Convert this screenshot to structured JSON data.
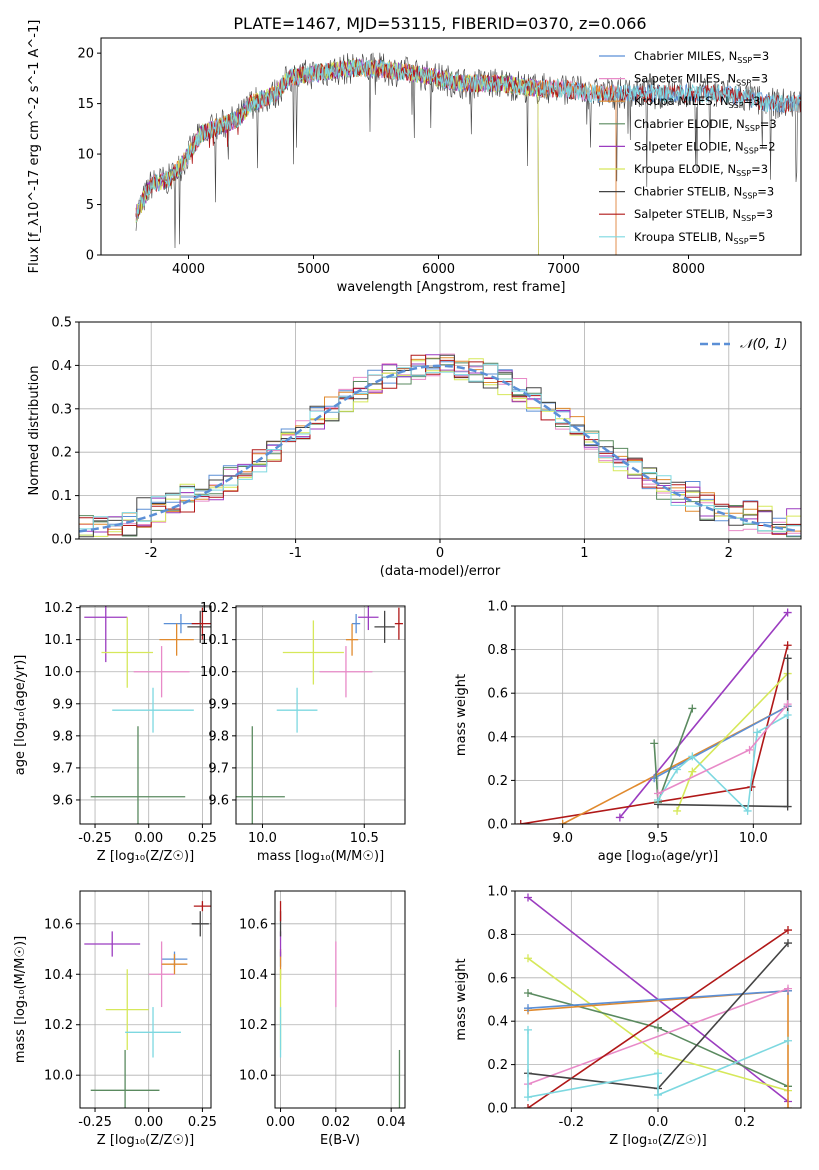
{
  "title": "PLATE=1467, MJD=53115, FIBERID=0370, z=0.066",
  "colors": {
    "Chabrier MILES": "#5b8fd6",
    "Salpeter MILES": "#e88ac8",
    "Kroupa MILES": "#e08a2e",
    "Chabrier ELODIE": "#5a8a5f",
    "Salpeter ELODIE": "#9b3cc0",
    "Kroupa ELODIE": "#d6e85a",
    "Chabrier STELIB": "#444444",
    "Salpeter STELIB": "#b01818",
    "Kroupa STELIB": "#7dd8e0"
  },
  "chart_data": [
    {
      "type": "line",
      "name": "spectrum",
      "xlabel": "wavelength [Angstrom, rest frame]",
      "ylabel": "Flux [f_λ10^-17 erg cm^-2 s^-1 A^-1]",
      "xlim": [
        3300,
        8900
      ],
      "ylim": [
        0,
        21.5
      ],
      "xticks": [
        4000,
        5000,
        6000,
        7000,
        8000
      ],
      "yticks": [
        0,
        5,
        10,
        15,
        20
      ],
      "grid": false,
      "legend_position": "top-right",
      "series": [
        {
          "name": "Chabrier MILES",
          "label": "Chabrier MILES, N",
          "sub": "SSP",
          "n": "=3",
          "xmax": 8950
        },
        {
          "name": "Salpeter MILES",
          "label": "Salpeter MILES, N",
          "sub": "SSP",
          "n": "=3",
          "xmax": 7420
        },
        {
          "name": "Kroupa MILES",
          "label": "Kroupa MILES, N",
          "sub": "SSP",
          "n": "=3",
          "xmax": 7420
        },
        {
          "name": "Chabrier ELODIE",
          "label": "Chabrier ELODIE, N",
          "sub": "SSP",
          "n": "=3",
          "xmax": 6800
        },
        {
          "name": "Salpeter ELODIE",
          "label": "Salpeter ELODIE, N",
          "sub": "SSP",
          "n": "=2",
          "xmax": 6800
        },
        {
          "name": "Kroupa ELODIE",
          "label": "Kroupa ELODIE, N",
          "sub": "SSP",
          "n": "=3",
          "xmax": 6800
        },
        {
          "name": "Chabrier STELIB",
          "label": "Chabrier STELIB, N",
          "sub": "SSP",
          "n": "=3",
          "xmax": 8950
        },
        {
          "name": "Salpeter STELIB",
          "label": "Salpeter STELIB, N",
          "sub": "SSP",
          "n": "=3",
          "xmax": 8950
        },
        {
          "name": "Kroupa STELIB",
          "label": "Kroupa STELIB, N",
          "sub": "SSP",
          "n": "=5",
          "xmax": 8950
        }
      ],
      "continuum": [
        [
          3580,
          4
        ],
        [
          3700,
          7
        ],
        [
          3850,
          7.5
        ],
        [
          3950,
          9
        ],
        [
          4000,
          10
        ],
        [
          4100,
          12
        ],
        [
          4200,
          12.5
        ],
        [
          4300,
          13
        ],
        [
          4400,
          13.5
        ],
        [
          4500,
          15
        ],
        [
          4700,
          16
        ],
        [
          4800,
          17.5
        ],
        [
          5000,
          18
        ],
        [
          5300,
          18.5
        ],
        [
          5500,
          18.5
        ],
        [
          5800,
          18
        ],
        [
          6000,
          17.5
        ],
        [
          6200,
          17
        ],
        [
          6500,
          17
        ],
        [
          6800,
          16.5
        ],
        [
          7000,
          16.5
        ],
        [
          7200,
          16
        ],
        [
          7500,
          16
        ],
        [
          7800,
          16
        ],
        [
          8000,
          16
        ],
        [
          8300,
          16
        ],
        [
          8500,
          15.5
        ],
        [
          8650,
          15
        ]
      ]
    },
    {
      "type": "histogram",
      "name": "residuals",
      "xlabel": "(data-model)/error",
      "ylabel": "Normed distribution",
      "xlim": [
        -2.5,
        2.5
      ],
      "ylim": [
        0,
        0.5
      ],
      "xticks": [
        -2,
        -1,
        0,
        1,
        2
      ],
      "yticks": [
        0.0,
        0.1,
        0.2,
        0.3,
        0.4,
        0.5
      ],
      "grid": true,
      "bin_width": 0.1,
      "reference_curve": {
        "label": "𝒩(0, 1)",
        "mean": 0,
        "sigma": 1,
        "color": "#5b8fd6"
      },
      "legend_position": "top-right"
    },
    {
      "type": "scatter",
      "name": "age-vs-Z",
      "xlabel": "Z [log₁₀(Z/Z☉)]",
      "ylabel": "age  [log₁₀(age/yr)]",
      "xlim": [
        -0.32,
        0.29
      ],
      "ylim": [
        9.525,
        10.205
      ],
      "xticks": [
        -0.25,
        0.0,
        0.25
      ],
      "yticks": [
        9.6,
        9.7,
        9.8,
        9.9,
        10.0,
        10.1,
        10.2
      ],
      "grid": true,
      "points": [
        {
          "name": "Chabrier MILES",
          "x": 0.15,
          "y": 10.15,
          "xerr": 0.08,
          "yerr": 0.03
        },
        {
          "name": "Salpeter MILES",
          "x": 0.06,
          "y": 10.0,
          "xerr": 0.13,
          "yerr": 0.08
        },
        {
          "name": "Kroupa MILES",
          "x": 0.13,
          "y": 10.1,
          "xerr": 0.08,
          "yerr": 0.05
        },
        {
          "name": "Chabrier ELODIE",
          "x": -0.05,
          "y": 9.61,
          "xerr": 0.22,
          "yerr": 0.22
        },
        {
          "name": "Salpeter ELODIE",
          "x": -0.2,
          "y": 10.17,
          "xerr": 0.1,
          "yerr": 0.14
        },
        {
          "name": "Kroupa ELODIE",
          "x": -0.1,
          "y": 10.06,
          "xerr": 0.12,
          "yerr": 0.11
        },
        {
          "name": "Chabrier STELIB",
          "x": 0.24,
          "y": 10.14,
          "xerr": 0.06,
          "yerr": 0.05
        },
        {
          "name": "Salpeter STELIB",
          "x": 0.25,
          "y": 10.15,
          "xerr": 0.05,
          "yerr": 0.05
        },
        {
          "name": "Kroupa STELIB",
          "x": 0.02,
          "y": 9.88,
          "xerr": 0.19,
          "yerr": 0.07
        }
      ]
    },
    {
      "type": "scatter",
      "name": "age-vs-mass",
      "xlabel": "mass [log₁₀(M/M☉)]",
      "ylabel": "",
      "xlim": [
        9.87,
        10.7
      ],
      "ylim": [
        9.525,
        10.205
      ],
      "xticks": [
        10.0,
        10.5
      ],
      "yticks": [
        9.6,
        9.7,
        9.8,
        9.9,
        10.0,
        10.1,
        10.2
      ],
      "grid": true,
      "points": [
        {
          "name": "Chabrier MILES",
          "x": 10.46,
          "y": 10.15,
          "xerr": 0.02,
          "yerr": 0.03
        },
        {
          "name": "Salpeter MILES",
          "x": 10.41,
          "y": 10.0,
          "xerr": 0.13,
          "yerr": 0.08
        },
        {
          "name": "Kroupa MILES",
          "x": 10.44,
          "y": 10.1,
          "xerr": 0.03,
          "yerr": 0.05
        },
        {
          "name": "Chabrier ELODIE",
          "x": 9.95,
          "y": 9.61,
          "xerr": 0.16,
          "yerr": 0.22
        },
        {
          "name": "Salpeter ELODIE",
          "x": 10.52,
          "y": 10.17,
          "xerr": 0.05,
          "yerr": 0.04
        },
        {
          "name": "Kroupa ELODIE",
          "x": 10.25,
          "y": 10.06,
          "xerr": 0.15,
          "yerr": 0.1
        },
        {
          "name": "Chabrier STELIB",
          "x": 10.6,
          "y": 10.14,
          "xerr": 0.05,
          "yerr": 0.05
        },
        {
          "name": "Salpeter STELIB",
          "x": 10.67,
          "y": 10.15,
          "xerr": 0.02,
          "yerr": 0.05
        },
        {
          "name": "Kroupa STELIB",
          "x": 10.17,
          "y": 9.88,
          "xerr": 0.1,
          "yerr": 0.07
        }
      ]
    },
    {
      "type": "line",
      "name": "massweight-vs-age",
      "xlabel": "age  [log₁₀(age/yr)]",
      "ylabel": "mass weight",
      "xlim": [
        8.75,
        10.25
      ],
      "ylim": [
        0,
        1.0
      ],
      "xticks": [
        9.0,
        9.5,
        10.0
      ],
      "yticks": [
        0.0,
        0.2,
        0.4,
        0.6,
        0.8,
        1.0
      ],
      "grid": true,
      "series": [
        {
          "name": "Salpeter ELODIE",
          "points": [
            [
              9.3,
              0.03
            ],
            [
              10.18,
              0.97
            ]
          ]
        },
        {
          "name": "Salpeter STELIB",
          "points": [
            [
              8.78,
              0.0
            ],
            [
              9.99,
              0.17
            ],
            [
              10.18,
              0.82
            ]
          ]
        },
        {
          "name": "Kroupa MILES",
          "points": [
            [
              9.0,
              0.0
            ],
            [
              10.18,
              0.54
            ]
          ]
        },
        {
          "name": "Chabrier MILES",
          "points": [
            [
              9.48,
              0.21
            ],
            [
              10.18,
              0.54
            ]
          ]
        },
        {
          "name": "Chabrier ELODIE",
          "points": [
            [
              9.48,
              0.37
            ],
            [
              9.5,
              0.1
            ],
            [
              9.68,
              0.53
            ]
          ]
        },
        {
          "name": "Kroupa ELODIE",
          "points": [
            [
              9.6,
              0.06
            ],
            [
              9.68,
              0.24
            ],
            [
              10.18,
              0.69
            ]
          ]
        },
        {
          "name": "Chabrier STELIB",
          "points": [
            [
              9.5,
              0.09
            ],
            [
              10.18,
              0.08
            ],
            [
              10.18,
              0.76
            ]
          ]
        },
        {
          "name": "Kroupa STELIB",
          "points": [
            [
              9.5,
              0.11
            ],
            [
              9.6,
              0.25
            ],
            [
              9.68,
              0.31
            ],
            [
              9.97,
              0.06
            ],
            [
              10.02,
              0.42
            ],
            [
              10.18,
              0.5
            ]
          ]
        },
        {
          "name": "Salpeter MILES",
          "points": [
            [
              9.5,
              0.14
            ],
            [
              9.98,
              0.34
            ],
            [
              10.18,
              0.55
            ]
          ]
        }
      ]
    },
    {
      "type": "scatter",
      "name": "mass-vs-Z",
      "xlabel": "Z [log₁₀(Z/Z☉)]",
      "ylabel": "mass [log₁₀(M/M☉)]",
      "xlim": [
        -0.32,
        0.29
      ],
      "ylim": [
        9.87,
        10.73
      ],
      "xticks": [
        -0.25,
        0.0,
        0.25
      ],
      "yticks": [
        10.0,
        10.2,
        10.4,
        10.6
      ],
      "grid": true,
      "points": [
        {
          "name": "Chabrier MILES",
          "x": 0.12,
          "y": 10.46,
          "xerr": 0.06,
          "yerr": 0.03
        },
        {
          "name": "Salpeter MILES",
          "x": 0.06,
          "y": 10.4,
          "xerr": 0.06,
          "yerr": 0.13
        },
        {
          "name": "Kroupa MILES",
          "x": 0.12,
          "y": 10.44,
          "xerr": 0.06,
          "yerr": 0.04
        },
        {
          "name": "Chabrier ELODIE",
          "x": -0.11,
          "y": 9.94,
          "xerr": 0.16,
          "yerr": 0.16
        },
        {
          "name": "Salpeter ELODIE",
          "x": -0.17,
          "y": 10.52,
          "xerr": 0.13,
          "yerr": 0.05
        },
        {
          "name": "Kroupa ELODIE",
          "x": -0.1,
          "y": 10.26,
          "xerr": 0.1,
          "yerr": 0.16
        },
        {
          "name": "Chabrier STELIB",
          "x": 0.24,
          "y": 10.6,
          "xerr": 0.04,
          "yerr": 0.05
        },
        {
          "name": "Salpeter STELIB",
          "x": 0.25,
          "y": 10.67,
          "xerr": 0.04,
          "yerr": 0.02
        },
        {
          "name": "Kroupa STELIB",
          "x": 0.02,
          "y": 10.17,
          "xerr": 0.13,
          "yerr": 0.1
        }
      ]
    },
    {
      "type": "scatter",
      "name": "mass-vs-EBV",
      "xlabel": "E(B-V)",
      "ylabel": "",
      "xlim": [
        -0.002,
        0.045
      ],
      "ylim": [
        9.87,
        10.73
      ],
      "xticks": [
        0.0,
        0.02,
        0.04
      ],
      "yticks": [
        10.0,
        10.2,
        10.4,
        10.6
      ],
      "grid": true,
      "points": [
        {
          "name": "Chabrier MILES",
          "x": 0.0,
          "y": 10.46,
          "xerr": 0,
          "yerr": 0.03
        },
        {
          "name": "Salpeter MILES",
          "x": 0.02,
          "y": 10.4,
          "xerr": 0,
          "yerr": 0.13
        },
        {
          "name": "Kroupa MILES",
          "x": 0.0,
          "y": 10.44,
          "xerr": 0,
          "yerr": 0.06
        },
        {
          "name": "Chabrier ELODIE",
          "x": 0.043,
          "y": 9.94,
          "xerr": 0,
          "yerr": 0.16
        },
        {
          "name": "Salpeter ELODIE",
          "x": 0.0,
          "y": 10.52,
          "xerr": 0,
          "yerr": 0.05
        },
        {
          "name": "Kroupa ELODIE",
          "x": 0.0,
          "y": 10.26,
          "xerr": 0,
          "yerr": 0.16
        },
        {
          "name": "Chabrier STELIB",
          "x": 0.0,
          "y": 10.6,
          "xerr": 0,
          "yerr": 0.05
        },
        {
          "name": "Salpeter STELIB",
          "x": 0.0,
          "y": 10.65,
          "xerr": 0,
          "yerr": 0.04
        },
        {
          "name": "Kroupa STELIB",
          "x": 0.0,
          "y": 10.17,
          "xerr": 0,
          "yerr": 0.1
        }
      ]
    },
    {
      "type": "line",
      "name": "massweight-vs-Z",
      "xlabel": "Z [log₁₀(Z/Z☉)]",
      "ylabel": "mass weight",
      "xlim": [
        -0.33,
        0.33
      ],
      "ylim": [
        0,
        1.0
      ],
      "xticks": [
        -0.2,
        0.0,
        0.2
      ],
      "yticks": [
        0.0,
        0.2,
        0.4,
        0.6,
        0.8,
        1.0
      ],
      "grid": true,
      "series": [
        {
          "name": "Salpeter ELODIE",
          "points": [
            [
              -0.3,
              0.97
            ],
            [
              0.3,
              0.03
            ]
          ]
        },
        {
          "name": "Kroupa ELODIE",
          "points": [
            [
              -0.3,
              0.69
            ],
            [
              0.0,
              0.25
            ],
            [
              0.3,
              0.08
            ]
          ]
        },
        {
          "name": "Chabrier ELODIE",
          "points": [
            [
              -0.3,
              0.53
            ],
            [
              0.0,
              0.37
            ],
            [
              0.3,
              0.1
            ]
          ]
        },
        {
          "name": "Kroupa MILES",
          "points": [
            [
              -0.3,
              0.45
            ],
            [
              0.3,
              0.54
            ],
            [
              0.3,
              0.0
            ]
          ]
        },
        {
          "name": "Chabrier MILES",
          "points": [
            [
              -0.3,
              0.46
            ],
            [
              0.3,
              0.54
            ]
          ]
        },
        {
          "name": "Salpeter MILES",
          "points": [
            [
              -0.3,
              0.11
            ],
            [
              0.3,
              0.55
            ]
          ]
        },
        {
          "name": "Salpeter STELIB",
          "points": [
            [
              -0.3,
              0.0
            ],
            [
              0.3,
              0.82
            ]
          ]
        },
        {
          "name": "Chabrier STELIB",
          "points": [
            [
              -0.3,
              0.16
            ],
            [
              0.0,
              0.09
            ],
            [
              0.3,
              0.76
            ]
          ]
        },
        {
          "name": "Kroupa STELIB",
          "points": [
            [
              -0.3,
              0.36
            ],
            [
              -0.3,
              0.05
            ],
            [
              0.0,
              0.16
            ],
            [
              0.0,
              0.06
            ],
            [
              0.3,
              0.31
            ]
          ]
        }
      ]
    }
  ]
}
